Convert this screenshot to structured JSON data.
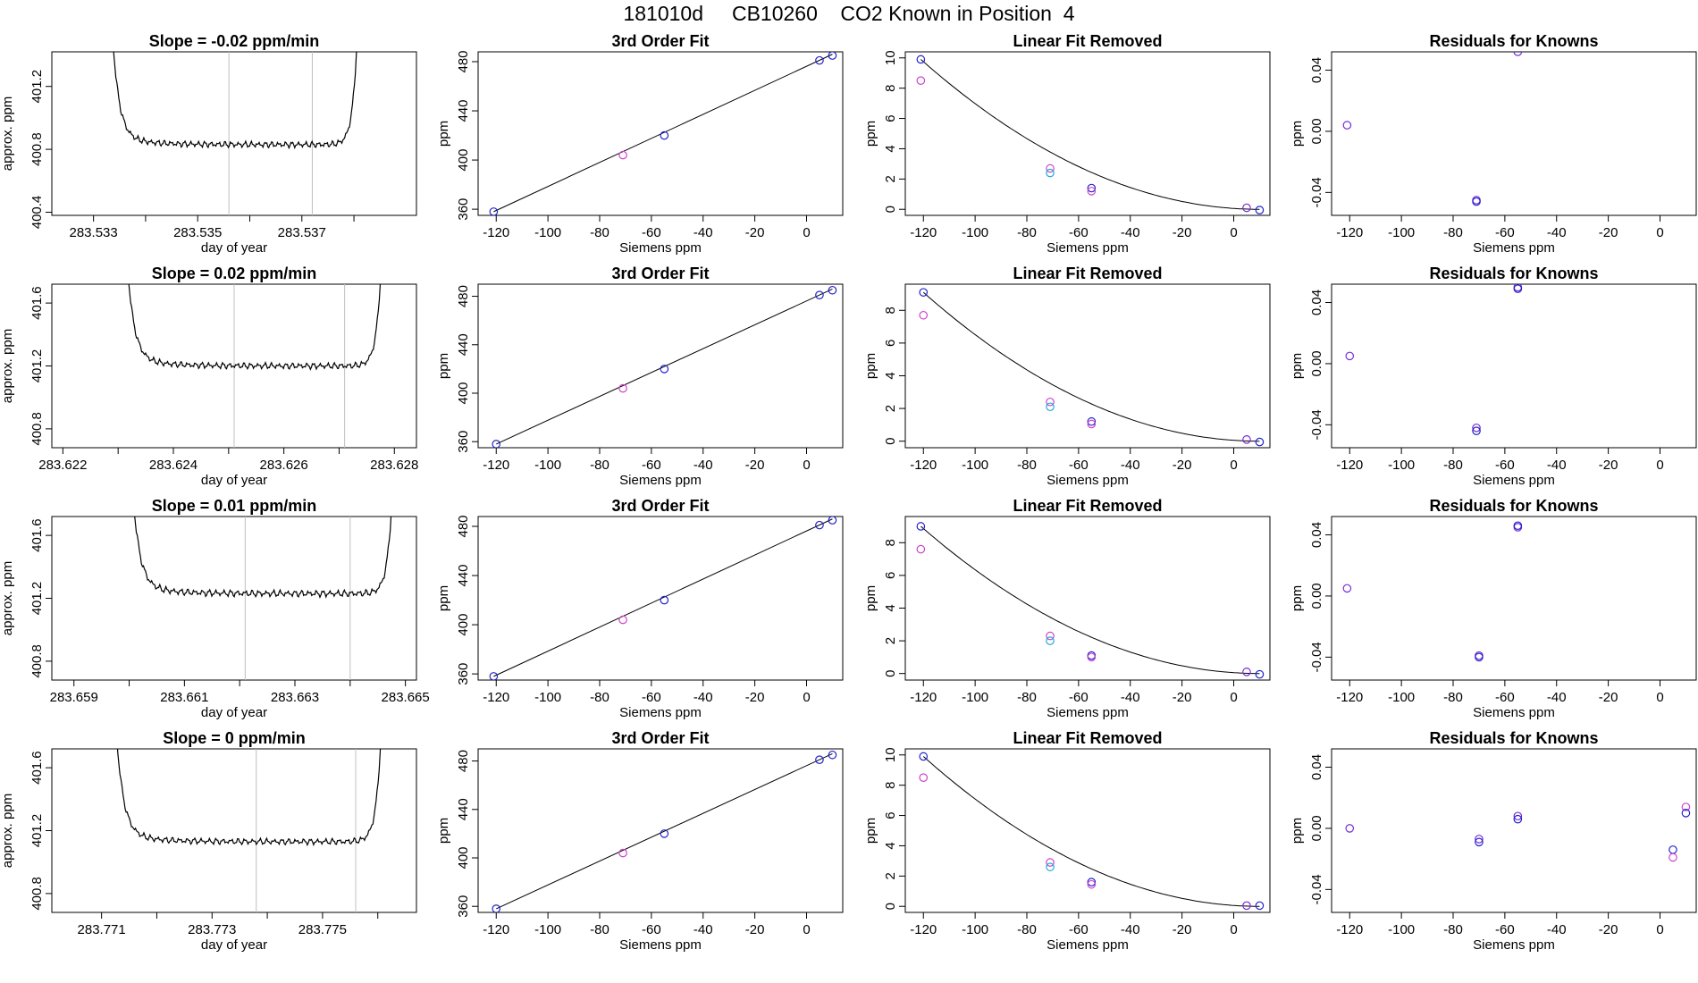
{
  "page": {
    "title": "181010d     CB10260    CO2 Known in Position  4"
  },
  "colors": {
    "trace": "#000000",
    "gridline": "#c0c0c0",
    "marker_blue": "#2222cc",
    "marker_magenta": "#cc44cc",
    "marker_cyan": "#22aadd",
    "marker_purple": "#7a2ad6"
  },
  "chart_data": [
    {
      "panel": "r1-time",
      "type": "line",
      "title": "Slope =  -0.02  ppm/min",
      "xlabel": "day of year",
      "ylabel": "approx. ppm",
      "xlim": [
        283.5322,
        283.5392
      ],
      "ylim": [
        400.38,
        401.42
      ],
      "xticks": [
        283.533,
        283.534,
        283.535,
        283.536,
        283.537,
        283.538
      ],
      "xtick_labels": [
        "283.533",
        "",
        "283.535",
        "",
        "283.537",
        ""
      ],
      "yticks": [
        400.4,
        400.8,
        401.2
      ],
      "ytick_labels": [
        "400.4",
        "400.8",
        "401.2"
      ],
      "vlines": [
        283.5356,
        283.5372
      ],
      "plateau": 400.83,
      "wobble": 0.012,
      "tail": 0.06,
      "sidewalls": [
        283.5333,
        283.5381
      ]
    },
    {
      "panel": "r1-fit",
      "type": "scatter",
      "title": "3rd Order Fit",
      "xlabel": "Siemens ppm",
      "ylabel": "ppm",
      "xlim": [
        -127,
        14
      ],
      "ylim": [
        355,
        488
      ],
      "xticks": [
        -120,
        -100,
        -80,
        -60,
        -40,
        -20,
        0
      ],
      "xtick_labels": [
        "-120",
        "-100",
        "-80",
        "-60",
        "-40",
        "-20",
        "0"
      ],
      "yticks": [
        360,
        400,
        440,
        480
      ],
      "ytick_labels": [
        "360",
        "400",
        "440",
        "480"
      ],
      "points": [
        {
          "x": -121,
          "y": 358,
          "c": "blue"
        },
        {
          "x": -71,
          "y": 404,
          "c": "magenta"
        },
        {
          "x": -55,
          "y": 420,
          "c": "blue"
        },
        {
          "x": 5,
          "y": 481,
          "c": "blue"
        },
        {
          "x": 10,
          "y": 485,
          "c": "blue"
        }
      ],
      "line": [
        [
          -121,
          358
        ],
        [
          10,
          486
        ]
      ]
    },
    {
      "panel": "r1-lin",
      "type": "scatter",
      "title": "Linear Fit Removed",
      "xlabel": "Siemens ppm",
      "ylabel": "ppm",
      "xlim": [
        -127,
        14
      ],
      "ylim": [
        -0.4,
        10.4
      ],
      "xticks": [
        -120,
        -100,
        -80,
        -60,
        -40,
        -20,
        0
      ],
      "xtick_labels": [
        "-120",
        "-100",
        "-80",
        "-60",
        "-40",
        "-20",
        "0"
      ],
      "yticks": [
        0,
        2,
        4,
        6,
        8,
        10
      ],
      "ytick_labels": [
        "0",
        "2",
        "4",
        "6",
        "8",
        "10"
      ],
      "points": [
        {
          "x": -121,
          "y": 9.9,
          "c": "blue"
        },
        {
          "x": -121,
          "y": 8.5,
          "c": "magenta"
        },
        {
          "x": -71,
          "y": 2.7,
          "c": "magenta"
        },
        {
          "x": -71,
          "y": 2.4,
          "c": "cyan"
        },
        {
          "x": -55,
          "y": 1.4,
          "c": "blue"
        },
        {
          "x": -55,
          "y": 1.2,
          "c": "magenta"
        },
        {
          "x": 5,
          "y": 0.1,
          "c": "purple"
        },
        {
          "x": 10,
          "y": -0.05,
          "c": "blue"
        }
      ],
      "curve_a": 9.9,
      "curve_x0": -121,
      "curve_x1": 10
    },
    {
      "panel": "r1-res",
      "type": "scatter",
      "title": "Residuals for Knowns",
      "xlabel": "Siemens ppm",
      "ylabel": "ppm",
      "xlim": [
        -127,
        14
      ],
      "ylim": [
        -0.055,
        0.052
      ],
      "xticks": [
        -120,
        -100,
        -80,
        -60,
        -40,
        -20,
        0
      ],
      "xtick_labels": [
        "-120",
        "-100",
        "-80",
        "-60",
        "-40",
        "-20",
        "0"
      ],
      "yticks": [
        -0.04,
        0,
        0.04
      ],
      "ytick_labels": [
        "-0.04",
        "0.00",
        "0.04"
      ],
      "points": [
        {
          "x": -121,
          "y": 0.004,
          "c": "purple"
        },
        {
          "x": -71,
          "y": -0.045,
          "c": "purple"
        },
        {
          "x": -71,
          "y": -0.046,
          "c": "blue"
        },
        {
          "x": -55,
          "y": 0.052,
          "c": "purple"
        }
      ]
    },
    {
      "panel": "r2-time",
      "type": "line",
      "title": "Slope =  0.02  ppm/min",
      "xlabel": "day of year",
      "ylabel": "approx. ppm",
      "xlim": [
        283.6218,
        283.6284
      ],
      "ylim": [
        400.68,
        401.72
      ],
      "xticks": [
        283.622,
        283.623,
        283.624,
        283.625,
        283.626,
        283.627,
        283.628
      ],
      "xtick_labels": [
        "283.622",
        "",
        "283.624",
        "",
        "283.626",
        "",
        "283.628"
      ],
      "yticks": [
        400.8,
        401.2,
        401.6
      ],
      "ytick_labels": [
        "400.8",
        "401.2",
        "401.6"
      ],
      "vlines": [
        283.6251,
        283.6271
      ],
      "plateau": 401.2,
      "wobble": 0.012,
      "tail": 0.06,
      "sidewalls": [
        283.6231,
        283.6278
      ]
    },
    {
      "panel": "r2-fit",
      "type": "scatter",
      "title": "3rd Order Fit",
      "xlabel": "Siemens ppm",
      "ylabel": "ppm",
      "xlim": [
        -127,
        14
      ],
      "ylim": [
        355,
        490
      ],
      "xticks": [
        -120,
        -100,
        -80,
        -60,
        -40,
        -20,
        0
      ],
      "xtick_labels": [
        "-120",
        "-100",
        "-80",
        "-60",
        "-40",
        "-20",
        "0"
      ],
      "yticks": [
        360,
        400,
        440,
        480
      ],
      "ytick_labels": [
        "360",
        "400",
        "440",
        "480"
      ],
      "points": [
        {
          "x": -120,
          "y": 358,
          "c": "blue"
        },
        {
          "x": -71,
          "y": 404,
          "c": "magenta"
        },
        {
          "x": -55,
          "y": 420,
          "c": "blue"
        },
        {
          "x": 5,
          "y": 481,
          "c": "blue"
        },
        {
          "x": 10,
          "y": 485,
          "c": "blue"
        }
      ],
      "line": [
        [
          -120,
          358
        ],
        [
          10,
          486
        ]
      ]
    },
    {
      "panel": "r2-lin",
      "type": "scatter",
      "title": "Linear Fit Removed",
      "xlabel": "Siemens ppm",
      "ylabel": "ppm",
      "xlim": [
        -127,
        14
      ],
      "ylim": [
        -0.4,
        9.6
      ],
      "xticks": [
        -120,
        -100,
        -80,
        -60,
        -40,
        -20,
        0
      ],
      "xtick_labels": [
        "-120",
        "-100",
        "-80",
        "-60",
        "-40",
        "-20",
        "0"
      ],
      "yticks": [
        0,
        2,
        4,
        6,
        8
      ],
      "ytick_labels": [
        "0",
        "2",
        "4",
        "6",
        "8"
      ],
      "points": [
        {
          "x": -120,
          "y": 9.1,
          "c": "blue"
        },
        {
          "x": -120,
          "y": 7.7,
          "c": "magenta"
        },
        {
          "x": -71,
          "y": 2.4,
          "c": "magenta"
        },
        {
          "x": -71,
          "y": 2.1,
          "c": "cyan"
        },
        {
          "x": -55,
          "y": 1.2,
          "c": "blue"
        },
        {
          "x": -55,
          "y": 1.05,
          "c": "magenta"
        },
        {
          "x": 5,
          "y": 0.1,
          "c": "purple"
        },
        {
          "x": 10,
          "y": -0.05,
          "c": "blue"
        }
      ],
      "curve_a": 9.1,
      "curve_x0": -120,
      "curve_x1": 10
    },
    {
      "panel": "r2-res",
      "type": "scatter",
      "title": "Residuals for Knowns",
      "xlabel": "Siemens ppm",
      "ylabel": "ppm",
      "xlim": [
        -127,
        14
      ],
      "ylim": [
        -0.055,
        0.052
      ],
      "xticks": [
        -120,
        -100,
        -80,
        -60,
        -40,
        -20,
        0
      ],
      "xtick_labels": [
        "-120",
        "-100",
        "-80",
        "-60",
        "-40",
        "-20",
        "0"
      ],
      "yticks": [
        -0.04,
        0,
        0.04
      ],
      "ytick_labels": [
        "-0.04",
        "0.00",
        "0.04"
      ],
      "points": [
        {
          "x": -120,
          "y": 0.005,
          "c": "purple"
        },
        {
          "x": -71,
          "y": -0.042,
          "c": "purple"
        },
        {
          "x": -71,
          "y": -0.044,
          "c": "blue"
        },
        {
          "x": -55,
          "y": 0.05,
          "c": "purple"
        },
        {
          "x": -55,
          "y": 0.049,
          "c": "blue"
        }
      ]
    },
    {
      "panel": "r3-time",
      "type": "line",
      "title": "Slope =  0.01  ppm/min",
      "xlabel": "day of year",
      "ylabel": "approx. ppm",
      "xlim": [
        283.6586,
        283.6652
      ],
      "ylim": [
        400.68,
        401.72
      ],
      "xticks": [
        283.659,
        283.66,
        283.661,
        283.662,
        283.663,
        283.664,
        283.665
      ],
      "xtick_labels": [
        "283.659",
        "",
        "283.661",
        "",
        "283.663",
        "",
        "283.665"
      ],
      "yticks": [
        400.8,
        401.2,
        401.6
      ],
      "ytick_labels": [
        "400.8",
        "401.2",
        "401.6"
      ],
      "vlines": [
        283.6621,
        283.664
      ],
      "plateau": 401.23,
      "wobble": 0.013,
      "tail": 0.06,
      "sidewalls": [
        283.66,
        283.6648
      ]
    },
    {
      "panel": "r3-fit",
      "type": "scatter",
      "title": "3rd Order Fit",
      "xlabel": "Siemens ppm",
      "ylabel": "ppm",
      "xlim": [
        -127,
        14
      ],
      "ylim": [
        355,
        488
      ],
      "xticks": [
        -120,
        -100,
        -80,
        -60,
        -40,
        -20,
        0
      ],
      "xtick_labels": [
        "-120",
        "-100",
        "-80",
        "-60",
        "-40",
        "-20",
        "0"
      ],
      "yticks": [
        360,
        400,
        440,
        480
      ],
      "ytick_labels": [
        "360",
        "400",
        "440",
        "480"
      ],
      "points": [
        {
          "x": -121,
          "y": 358,
          "c": "blue"
        },
        {
          "x": -71,
          "y": 404,
          "c": "magenta"
        },
        {
          "x": -55,
          "y": 420,
          "c": "blue"
        },
        {
          "x": 5,
          "y": 481,
          "c": "blue"
        },
        {
          "x": 10,
          "y": 485,
          "c": "blue"
        }
      ],
      "line": [
        [
          -121,
          358
        ],
        [
          10,
          486
        ]
      ]
    },
    {
      "panel": "r3-lin",
      "type": "scatter",
      "title": "Linear Fit Removed",
      "xlabel": "Siemens ppm",
      "ylabel": "ppm",
      "xlim": [
        -127,
        14
      ],
      "ylim": [
        -0.4,
        9.6
      ],
      "xticks": [
        -120,
        -100,
        -80,
        -60,
        -40,
        -20,
        0
      ],
      "xtick_labels": [
        "-120",
        "-100",
        "-80",
        "-60",
        "-40",
        "-20",
        "0"
      ],
      "yticks": [
        0,
        2,
        4,
        6,
        8
      ],
      "ytick_labels": [
        "0",
        "2",
        "4",
        "6",
        "8"
      ],
      "points": [
        {
          "x": -121,
          "y": 9.0,
          "c": "blue"
        },
        {
          "x": -121,
          "y": 7.6,
          "c": "magenta"
        },
        {
          "x": -71,
          "y": 2.3,
          "c": "magenta"
        },
        {
          "x": -71,
          "y": 2.0,
          "c": "cyan"
        },
        {
          "x": -55,
          "y": 1.1,
          "c": "blue"
        },
        {
          "x": -55,
          "y": 1.0,
          "c": "magenta"
        },
        {
          "x": 5,
          "y": 0.1,
          "c": "purple"
        },
        {
          "x": 10,
          "y": -0.05,
          "c": "blue"
        }
      ],
      "curve_a": 9.0,
      "curve_x0": -121,
      "curve_x1": 10
    },
    {
      "panel": "r3-res",
      "type": "scatter",
      "title": "Residuals for Knowns",
      "xlabel": "Siemens ppm",
      "ylabel": "ppm",
      "xlim": [
        -127,
        14
      ],
      "ylim": [
        -0.055,
        0.052
      ],
      "xticks": [
        -120,
        -100,
        -80,
        -60,
        -40,
        -20,
        0
      ],
      "xtick_labels": [
        "-120",
        "-100",
        "-80",
        "-60",
        "-40",
        "-20",
        "0"
      ],
      "yticks": [
        -0.04,
        0,
        0.04
      ],
      "ytick_labels": [
        "-0.04",
        "0.00",
        "0.04"
      ],
      "points": [
        {
          "x": -121,
          "y": 0.005,
          "c": "purple"
        },
        {
          "x": -70,
          "y": -0.039,
          "c": "purple"
        },
        {
          "x": -70,
          "y": -0.04,
          "c": "blue"
        },
        {
          "x": -55,
          "y": 0.045,
          "c": "purple"
        },
        {
          "x": -55,
          "y": 0.046,
          "c": "blue"
        }
      ]
    },
    {
      "panel": "r4-time",
      "type": "line",
      "title": "Slope =  0  ppm/min",
      "xlabel": "day of year",
      "ylabel": "approx. ppm",
      "xlim": [
        283.7701,
        283.7767
      ],
      "ylim": [
        400.68,
        401.72
      ],
      "xticks": [
        283.771,
        283.772,
        283.773,
        283.774,
        283.775,
        283.776
      ],
      "xtick_labels": [
        "283.771",
        "",
        "283.773",
        "",
        "283.775",
        ""
      ],
      "yticks": [
        400.8,
        401.2,
        401.6
      ],
      "ytick_labels": [
        "400.8",
        "401.2",
        "401.6"
      ],
      "vlines": [
        283.7738,
        283.7756
      ],
      "plateau": 401.13,
      "wobble": 0.012,
      "tail": 0.06,
      "sidewalls": [
        283.7712,
        283.7761
      ]
    },
    {
      "panel": "r4-fit",
      "type": "scatter",
      "title": "3rd Order Fit",
      "xlabel": "Siemens ppm",
      "ylabel": "ppm",
      "xlim": [
        -127,
        14
      ],
      "ylim": [
        355,
        490
      ],
      "xticks": [
        -120,
        -100,
        -80,
        -60,
        -40,
        -20,
        0
      ],
      "xtick_labels": [
        "-120",
        "-100",
        "-80",
        "-60",
        "-40",
        "-20",
        "0"
      ],
      "yticks": [
        360,
        400,
        440,
        480
      ],
      "ytick_labels": [
        "360",
        "400",
        "440",
        "480"
      ],
      "points": [
        {
          "x": -120,
          "y": 358,
          "c": "blue"
        },
        {
          "x": -71,
          "y": 404,
          "c": "magenta"
        },
        {
          "x": -55,
          "y": 420,
          "c": "blue"
        },
        {
          "x": 5,
          "y": 481,
          "c": "blue"
        },
        {
          "x": 10,
          "y": 485,
          "c": "blue"
        }
      ],
      "line": [
        [
          -120,
          358
        ],
        [
          10,
          486
        ]
      ]
    },
    {
      "panel": "r4-lin",
      "type": "scatter",
      "title": "Linear Fit Removed",
      "xlabel": "Siemens ppm",
      "ylabel": "ppm",
      "xlim": [
        -127,
        14
      ],
      "ylim": [
        -0.4,
        10.4
      ],
      "xticks": [
        -120,
        -100,
        -80,
        -60,
        -40,
        -20,
        0
      ],
      "xtick_labels": [
        "-120",
        "-100",
        "-80",
        "-60",
        "-40",
        "-20",
        "0"
      ],
      "yticks": [
        0,
        2,
        4,
        6,
        8,
        10
      ],
      "ytick_labels": [
        "0",
        "2",
        "4",
        "6",
        "8",
        "10"
      ],
      "points": [
        {
          "x": -120,
          "y": 9.9,
          "c": "blue"
        },
        {
          "x": -120,
          "y": 8.5,
          "c": "magenta"
        },
        {
          "x": -71,
          "y": 2.9,
          "c": "magenta"
        },
        {
          "x": -71,
          "y": 2.6,
          "c": "cyan"
        },
        {
          "x": -55,
          "y": 1.6,
          "c": "blue"
        },
        {
          "x": -55,
          "y": 1.45,
          "c": "magenta"
        },
        {
          "x": 5,
          "y": 0.05,
          "c": "purple"
        },
        {
          "x": 10,
          "y": 0.05,
          "c": "blue"
        }
      ],
      "curve_a": 9.9,
      "curve_x0": -120,
      "curve_x1": 10
    },
    {
      "panel": "r4-res",
      "type": "scatter",
      "title": "Residuals for Knowns",
      "xlabel": "Siemens ppm",
      "ylabel": "ppm",
      "xlim": [
        -127,
        14
      ],
      "ylim": [
        -0.055,
        0.052
      ],
      "xticks": [
        -120,
        -100,
        -80,
        -60,
        -40,
        -20,
        0
      ],
      "xtick_labels": [
        "-120",
        "-100",
        "-80",
        "-60",
        "-40",
        "-20",
        "0"
      ],
      "yticks": [
        -0.04,
        0,
        0.04
      ],
      "ytick_labels": [
        "-0.04",
        "0.00",
        "0.04"
      ],
      "points": [
        {
          "x": -120,
          "y": 0.0,
          "c": "purple"
        },
        {
          "x": -70,
          "y": -0.007,
          "c": "purple"
        },
        {
          "x": -70,
          "y": -0.009,
          "c": "blue"
        },
        {
          "x": -55,
          "y": 0.008,
          "c": "purple"
        },
        {
          "x": -55,
          "y": 0.006,
          "c": "blue"
        },
        {
          "x": 5,
          "y": -0.014,
          "c": "blue"
        },
        {
          "x": 5,
          "y": -0.019,
          "c": "magenta"
        },
        {
          "x": 10,
          "y": 0.014,
          "c": "magenta"
        },
        {
          "x": 10,
          "y": 0.01,
          "c": "blue"
        }
      ]
    }
  ]
}
